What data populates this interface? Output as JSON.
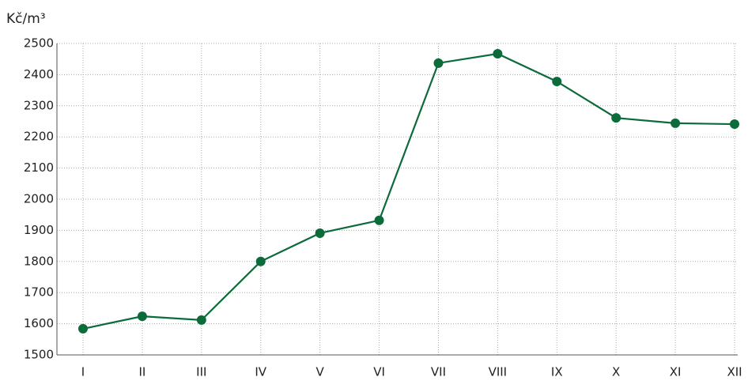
{
  "chart_data": {
    "type": "line",
    "ylabel": "Kč/m³",
    "categories": [
      "I",
      "II",
      "III",
      "IV",
      "V",
      "VI",
      "VII",
      "VIII",
      "IX",
      "X",
      "XI",
      "XII"
    ],
    "series": [
      {
        "color": "#0b6b3a",
        "values": [
          1584,
          1624,
          1612,
          1800,
          1891,
          1932,
          2437,
          2467,
          2378,
          2261,
          2244,
          2241
        ]
      }
    ],
    "ylim": [
      1500,
      2500
    ],
    "yticks": [
      1500,
      1600,
      1700,
      1800,
      1900,
      2000,
      2100,
      2200,
      2300,
      2400,
      2500
    ],
    "grid": true
  }
}
